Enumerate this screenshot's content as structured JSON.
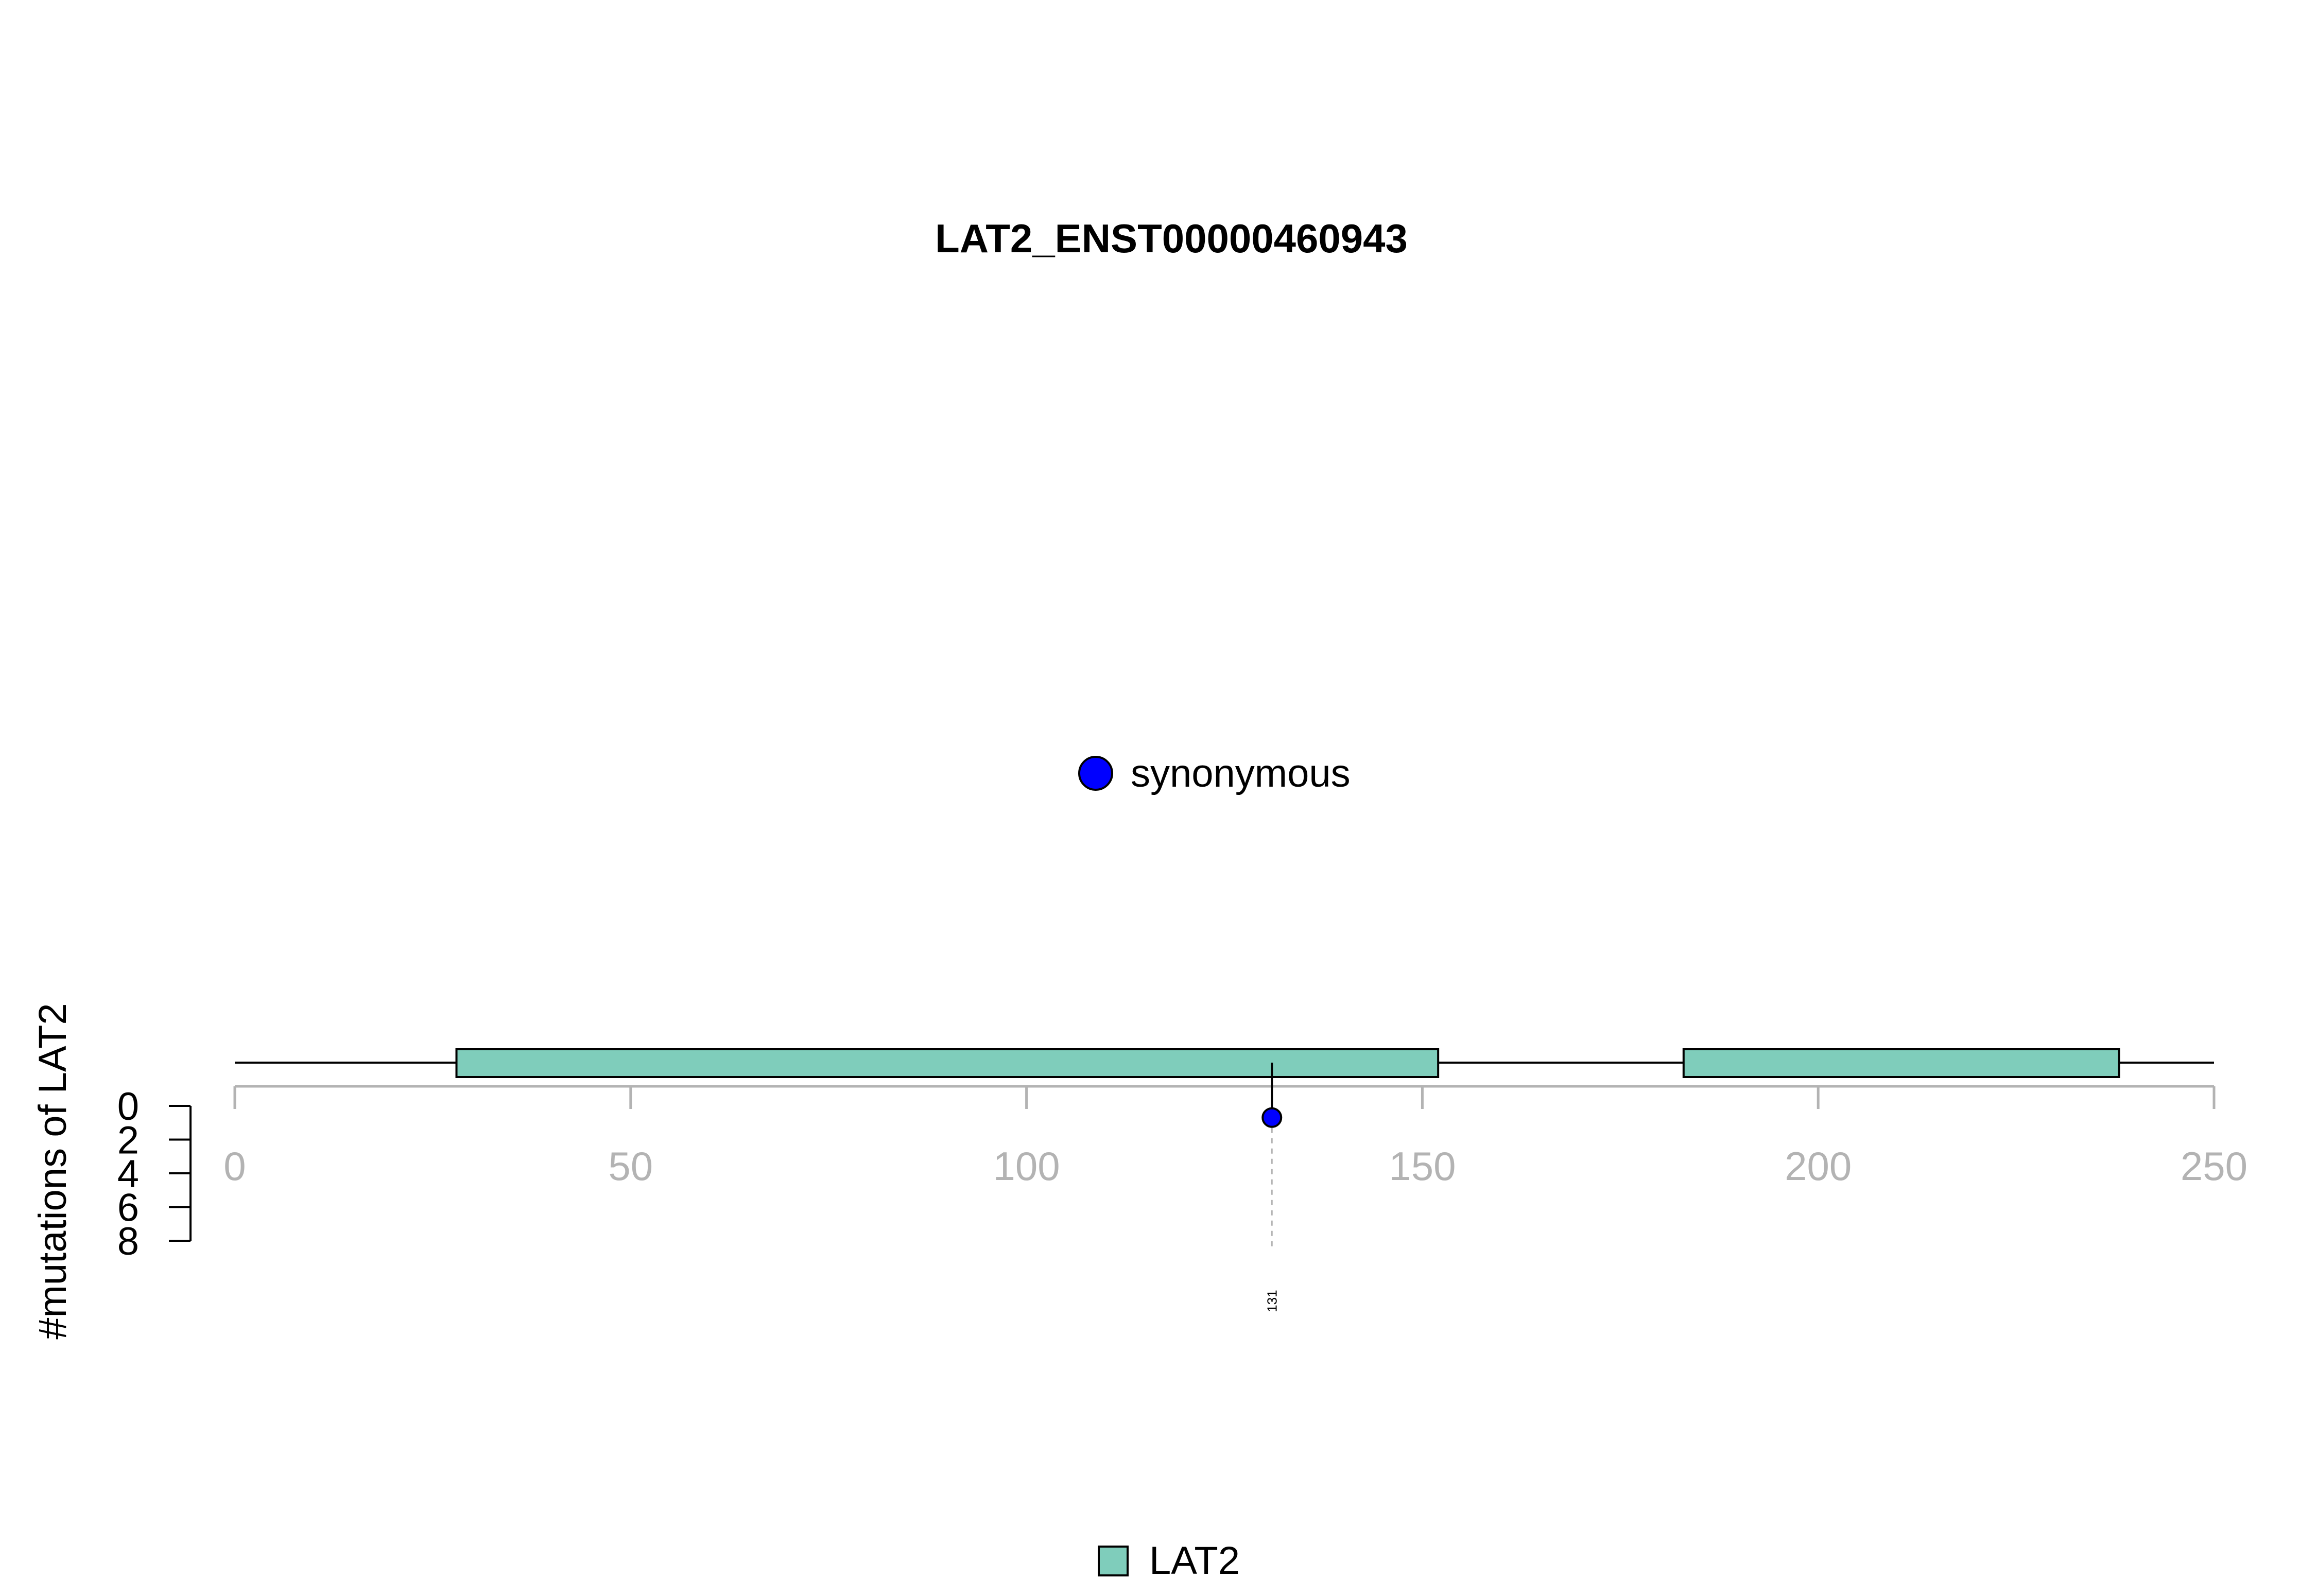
{
  "chart_data": {
    "type": "lollipop",
    "title": "LAT2_ENST00000460943",
    "ylabel": "#mutations of LAT2",
    "protein_length": 250,
    "x_ticks": [
      0,
      50,
      100,
      150,
      200,
      250
    ],
    "y_ticks": [
      0,
      2,
      4,
      6,
      8
    ],
    "ylim": [
      0,
      8
    ],
    "domains": [
      {
        "name": "LAT2",
        "start": 28,
        "end": 152,
        "color": "#7fcdbb"
      },
      {
        "name": "LAT2",
        "start": 183,
        "end": 238,
        "color": "#7fcdbb"
      }
    ],
    "mutations": [
      {
        "position": 131,
        "count": 1,
        "label": "131",
        "type": "synonymous",
        "color": "#0000ff"
      }
    ],
    "mutation_legend": [
      {
        "label": "synonymous",
        "color": "#0000ff"
      }
    ],
    "domain_legend": [
      {
        "label": "LAT2",
        "color": "#7fcdbb"
      }
    ]
  }
}
